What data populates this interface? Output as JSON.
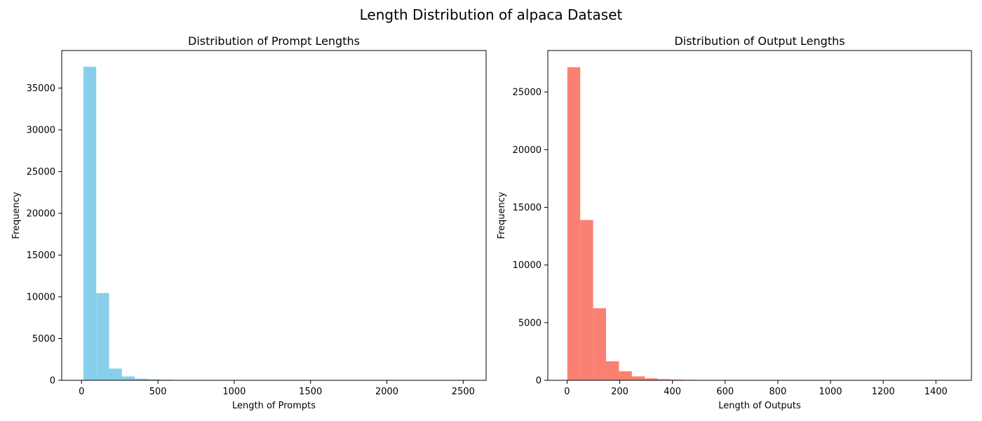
{
  "figure": {
    "suptitle": "Length Distribution of alpaca Dataset"
  },
  "chart_data": [
    {
      "type": "bar",
      "subtype": "histogram",
      "title": "Distribution of Prompt Lengths",
      "xlabel": "Length of Prompts",
      "ylabel": "Frequency",
      "color": "#87ceeb",
      "grid": false,
      "xlim": [
        -130,
        2650
      ],
      "ylim": [
        0,
        39500
      ],
      "xticks": [
        0,
        500,
        1000,
        1500,
        2000,
        2500
      ],
      "yticks": [
        0,
        5000,
        10000,
        15000,
        20000,
        25000,
        30000,
        35000
      ],
      "bin_edges": [
        12,
        96,
        180,
        264,
        348,
        432,
        516,
        600,
        684,
        768,
        852,
        936,
        1020,
        1104,
        1188,
        1272,
        1356,
        1440,
        1524,
        1608,
        1692,
        1776,
        1860,
        1944,
        2028,
        2112,
        2196,
        2280,
        2364,
        2448,
        2532
      ],
      "values": [
        37550,
        10450,
        1400,
        460,
        200,
        120,
        70,
        40,
        25,
        15,
        10,
        8,
        6,
        4,
        3,
        2,
        2,
        1,
        1,
        1,
        1,
        0,
        0,
        0,
        0,
        0,
        0,
        0,
        0,
        1
      ]
    },
    {
      "type": "bar",
      "subtype": "histogram",
      "title": "Distribution of Output Lengths",
      "xlabel": "Length of Outputs",
      "ylabel": "Frequency",
      "color": "#fa8072",
      "grid": false,
      "xlim": [
        -73,
        1535
      ],
      "ylim": [
        0,
        28600
      ],
      "xticks": [
        0,
        200,
        400,
        600,
        800,
        1000,
        1200,
        1400
      ],
      "yticks": [
        0,
        5000,
        10000,
        15000,
        20000,
        25000
      ],
      "bin_edges": [
        1,
        50,
        99,
        148,
        197,
        246,
        295,
        344,
        393,
        442,
        491,
        540,
        589,
        638,
        687,
        736,
        785,
        834,
        883,
        932,
        981,
        1030,
        1079,
        1128,
        1177,
        1226,
        1275,
        1324,
        1373,
        1422,
        1471
      ],
      "values": [
        27150,
        13900,
        6250,
        1650,
        780,
        340,
        170,
        100,
        60,
        40,
        25,
        15,
        10,
        6,
        4,
        3,
        2,
        2,
        1,
        1,
        1,
        1,
        0,
        0,
        0,
        0,
        0,
        0,
        0,
        1
      ]
    }
  ]
}
